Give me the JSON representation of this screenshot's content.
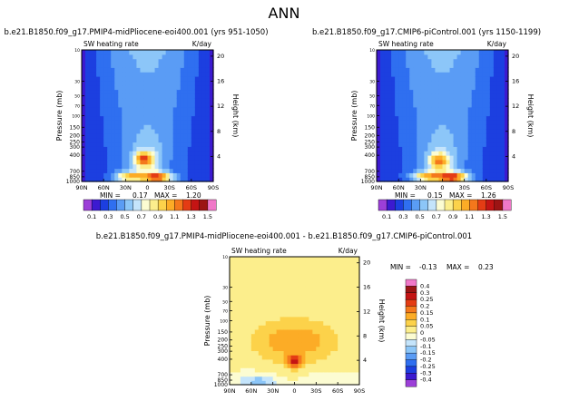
{
  "figure": {
    "title": "ANN"
  },
  "chart_data": [
    {
      "type": "heatmap",
      "case_title": "b.e21.B1850.f09_g17.PMIP4-midPliocene-eoi400.001  (yrs 951-1050)",
      "variable": "SW heating rate",
      "units": "K/day",
      "xlabel": "",
      "ylabel": "Pressure (mb)",
      "ylabel_right": "Height (km)",
      "x_ticks": [
        "90N",
        "60N",
        "30N",
        "0",
        "30S",
        "60S",
        "90S"
      ],
      "y_ticks": [
        "1000",
        "850",
        "700",
        "400",
        "300",
        "250",
        "200",
        "150",
        "100",
        "70",
        "50",
        "30",
        "10"
      ],
      "height_ticks": [
        "4",
        "8",
        "12",
        "16",
        "20"
      ],
      "ylim": [
        1000,
        10
      ],
      "min_label": "MIN =",
      "min_value": "0.17",
      "max_label": "MAX =",
      "max_value": "1.20",
      "colorbar_labels": [
        "0.1",
        "0.3",
        "0.5",
        "0.7",
        "0.9",
        "1.1",
        "1.3",
        "1.5"
      ],
      "colorbar_colors": [
        "#9c3fd8",
        "#3c1ad0",
        "#1c3fe0",
        "#2f6ff0",
        "#5a9cf5",
        "#8cc6f8",
        "#c4e4fb",
        "#fcfcd2",
        "#fcee8c",
        "#fcd24a",
        "#fcac26",
        "#f4781c",
        "#e43c14",
        "#c41414",
        "#9c1414",
        "#f078c8"
      ],
      "features": [
        {
          "name": "tropical upper-troposphere maximum",
          "lat": 5,
          "pressure": 450,
          "value": 1.1
        },
        {
          "name": "southern hemisphere lower-troposphere maximum",
          "lat": -15,
          "pressure": 850,
          "value": 1.2
        },
        {
          "name": "northern hemisphere lower-troposphere maximum",
          "lat": 25,
          "pressure": 830,
          "value": 1.0
        }
      ]
    },
    {
      "type": "heatmap",
      "case_title": "b.e21.B1850.f09_g17.CMIP6-piControl.001  (yrs 1150-1199)",
      "variable": "SW heating rate",
      "units": "K/day",
      "xlabel": "",
      "ylabel": "Pressure (mb)",
      "ylabel_right": "Height (km)",
      "x_ticks": [
        "90N",
        "60N",
        "30N",
        "0",
        "30S",
        "60S",
        "90S"
      ],
      "y_ticks": [
        "1000",
        "850",
        "700",
        "400",
        "300",
        "250",
        "200",
        "150",
        "100",
        "70",
        "50",
        "30",
        "10"
      ],
      "height_ticks": [
        "4",
        "8",
        "12",
        "16",
        "20"
      ],
      "ylim": [
        1000,
        10
      ],
      "min_label": "MIN =",
      "min_value": "0.15",
      "max_label": "MAX =",
      "max_value": "1.26",
      "colorbar_labels": [
        "0.1",
        "0.3",
        "0.5",
        "0.7",
        "0.9",
        "1.1",
        "1.3",
        "1.5"
      ],
      "colorbar_colors": [
        "#9c3fd8",
        "#3c1ad0",
        "#1c3fe0",
        "#2f6ff0",
        "#5a9cf5",
        "#8cc6f8",
        "#c4e4fb",
        "#fcfcd2",
        "#fcee8c",
        "#fcd24a",
        "#fcac26",
        "#f4781c",
        "#e43c14",
        "#c41414",
        "#9c1414",
        "#f078c8"
      ],
      "features": [
        {
          "name": "tropical upper-troposphere maximum",
          "lat": 5,
          "pressure": 480,
          "value": 1.0
        },
        {
          "name": "southern hemisphere lower-troposphere maximum",
          "lat": -15,
          "pressure": 850,
          "value": 1.26
        },
        {
          "name": "northern hemisphere lower-troposphere maximum",
          "lat": 22,
          "pressure": 830,
          "value": 1.0
        }
      ]
    },
    {
      "type": "heatmap",
      "case_title": "b.e21.B1850.f09_g17.PMIP4-midPliocene-eoi400.001  -  b.e21.B1850.f09_g17.CMIP6-piControl.001",
      "variable": "SW heating rate",
      "units": "K/day",
      "xlabel": "",
      "ylabel": "Pressure (mb)",
      "ylabel_right": "Height (km)",
      "x_ticks": [
        "90N",
        "60N",
        "30N",
        "0",
        "30S",
        "60S",
        "90S"
      ],
      "y_ticks": [
        "1000",
        "850",
        "700",
        "400",
        "300",
        "250",
        "200",
        "150",
        "100",
        "70",
        "50",
        "30",
        "10"
      ],
      "height_ticks": [
        "4",
        "8",
        "12",
        "16",
        "20"
      ],
      "ylim": [
        1000,
        10
      ],
      "min_label": "MIN =",
      "min_value": "-0.13",
      "max_label": "MAX =",
      "max_value": "0.23",
      "colorbar_labels": [
        "0.4",
        "0.3",
        "0.25",
        "0.2",
        "0.15",
        "0.1",
        "0.05",
        "0",
        "-0.05",
        "-0.1",
        "-0.15",
        "-0.2",
        "-0.25",
        "-0.3",
        "-0.4"
      ],
      "colorbar_colors": [
        "#f078c8",
        "#9c1414",
        "#c41414",
        "#e43c14",
        "#f4781c",
        "#fcac26",
        "#fcd24a",
        "#fcee8c",
        "#fcfcd2",
        "#c4e4fb",
        "#8cc6f8",
        "#5a9cf5",
        "#2f6ff0",
        "#1c3fe0",
        "#3c1ad0",
        "#9c3fd8"
      ],
      "features": [
        {
          "name": "tropical upper-troposphere increase",
          "lat": 0,
          "pressure": 420,
          "value": 0.23
        },
        {
          "name": "upper-troposphere broad increase",
          "lat": 0,
          "pressure": 200,
          "value": 0.1
        },
        {
          "name": "lower-troposphere decrease",
          "lat": 50,
          "pressure": 880,
          "value": -0.13
        }
      ]
    }
  ]
}
